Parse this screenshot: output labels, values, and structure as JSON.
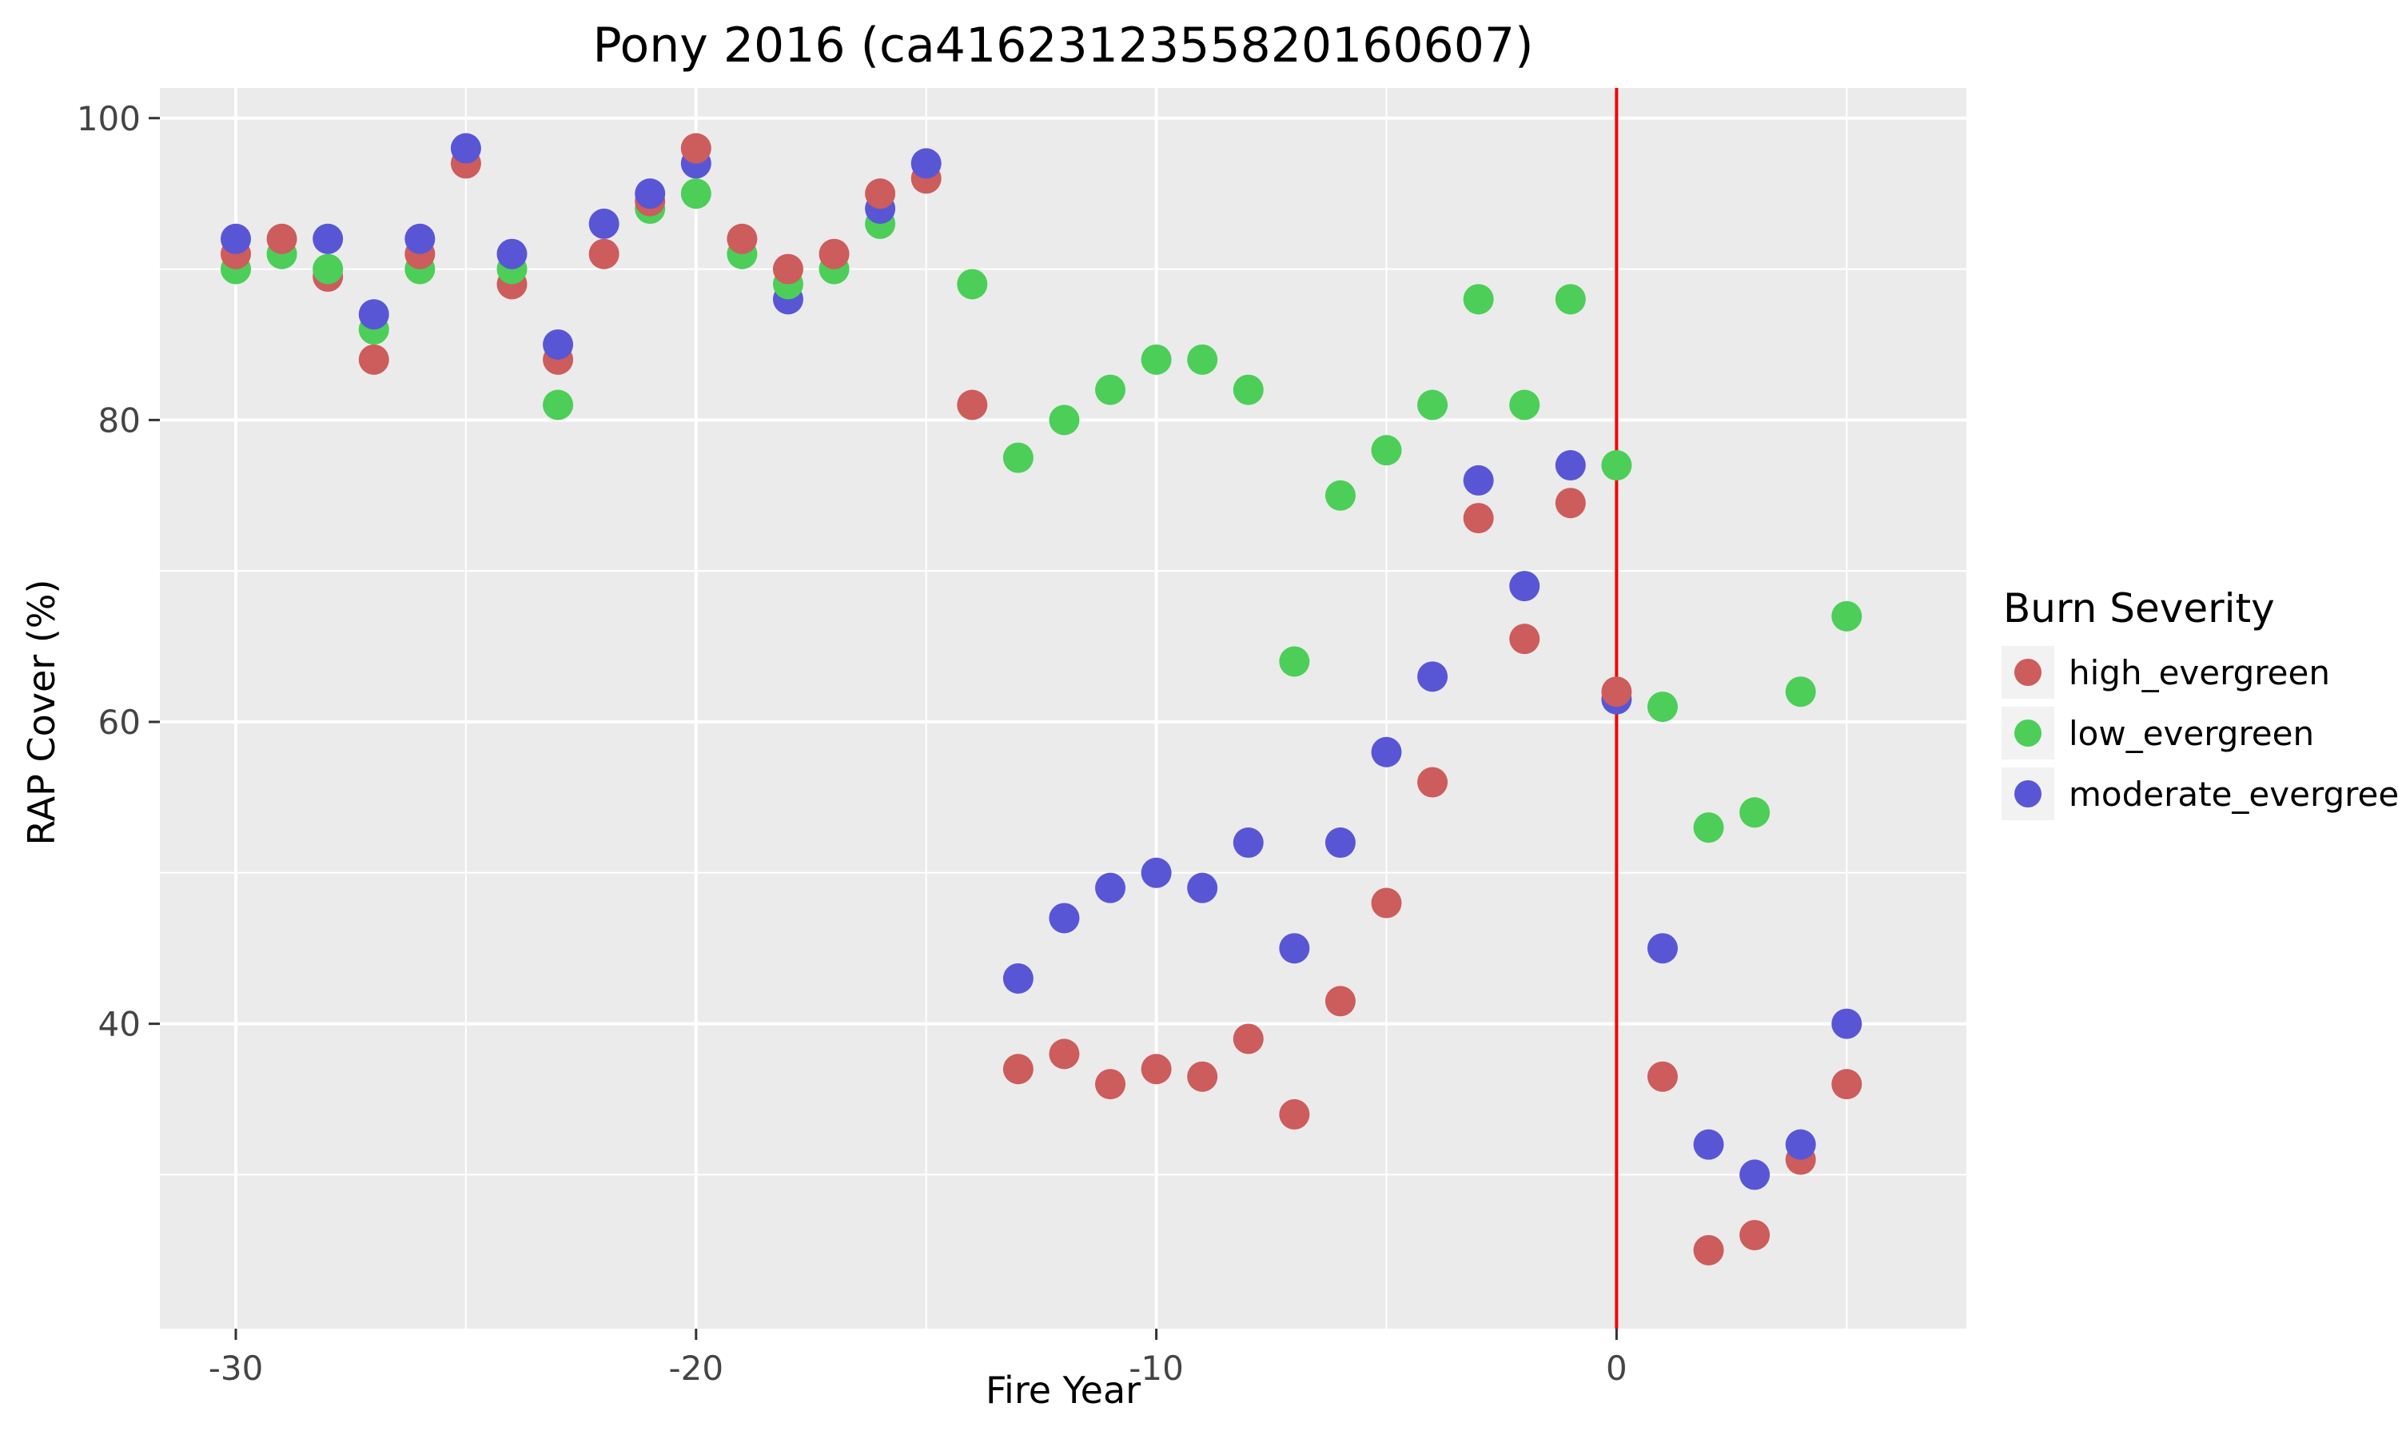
{
  "title": "Pony 2016 (ca4162312355820160607)",
  "chart_data": {
    "type": "scatter",
    "title": "Pony 2016 (ca4162312355820160607)",
    "xlabel": "Fire Year",
    "ylabel": "RAP Cover (%)",
    "xlim": [
      -31.65,
      7.6
    ],
    "ylim": [
      19.8,
      102.0
    ],
    "x_ticks": [
      -30,
      -20,
      -10,
      0
    ],
    "x_minor_ticks": [
      -25,
      -15,
      -5,
      5
    ],
    "y_ticks": [
      40,
      60,
      80,
      100
    ],
    "y_minor_ticks": [
      30,
      50,
      70,
      90
    ],
    "grid": "on",
    "panel_bg": "#EBEBEB",
    "grid_color": "#FFFFFF",
    "tick_color": "#333333",
    "tick_label_color": "#444444",
    "point_radius": 19,
    "vline": {
      "x": 0,
      "color": "#F50000"
    },
    "legend": {
      "title": "Burn Severity",
      "position": "right",
      "key_bg": "#F2F2F2"
    },
    "series": [
      {
        "name": "high_evergreen",
        "color": "#CD5C5C",
        "points": [
          [
            -30,
            91
          ],
          [
            -29,
            92
          ],
          [
            -28,
            89.5
          ],
          [
            -27,
            84
          ],
          [
            -26,
            91
          ],
          [
            -25,
            97
          ],
          [
            -24,
            89
          ],
          [
            -23,
            84
          ],
          [
            -22,
            91
          ],
          [
            -21,
            94.5
          ],
          [
            -20,
            98
          ],
          [
            -19,
            92
          ],
          [
            -18,
            90
          ],
          [
            -17,
            91
          ],
          [
            -16,
            95
          ],
          [
            -15,
            96
          ],
          [
            -14,
            81
          ],
          [
            -13,
            37
          ],
          [
            -12,
            38
          ],
          [
            -11,
            36
          ],
          [
            -10,
            37
          ],
          [
            -9,
            36.5
          ],
          [
            -8,
            39
          ],
          [
            -7,
            34
          ],
          [
            -6,
            41.5
          ],
          [
            -5,
            48
          ],
          [
            -4,
            56
          ],
          [
            -3,
            73.5
          ],
          [
            -2,
            65.5
          ],
          [
            -1,
            74.5
          ],
          [
            0,
            62
          ],
          [
            1,
            36.5
          ],
          [
            2,
            25
          ],
          [
            3,
            26
          ],
          [
            4,
            31
          ],
          [
            5,
            36
          ]
        ]
      },
      {
        "name": "low_evergreen",
        "color": "#4CCE58",
        "points": [
          [
            -30,
            90
          ],
          [
            -29,
            91
          ],
          [
            -28,
            90
          ],
          [
            -27,
            86
          ],
          [
            -26,
            90
          ],
          [
            -24,
            90
          ],
          [
            -23,
            81
          ],
          [
            -21,
            94
          ],
          [
            -20,
            95
          ],
          [
            -19,
            91
          ],
          [
            -18,
            89
          ],
          [
            -17,
            90
          ],
          [
            -16,
            93
          ],
          [
            -14,
            89
          ],
          [
            -13,
            77.5
          ],
          [
            -12,
            80
          ],
          [
            -11,
            82
          ],
          [
            -10,
            84
          ],
          [
            -9,
            84
          ],
          [
            -8,
            82
          ],
          [
            -7,
            64
          ],
          [
            -6,
            75
          ],
          [
            -5,
            78
          ],
          [
            -4,
            81
          ],
          [
            -3,
            88
          ],
          [
            -2,
            81
          ],
          [
            -1,
            88
          ],
          [
            0,
            77
          ],
          [
            1,
            61
          ],
          [
            2,
            53
          ],
          [
            3,
            54
          ],
          [
            4,
            62
          ],
          [
            5,
            67
          ]
        ]
      },
      {
        "name": "moderate_evergreen",
        "color": "#5956D5",
        "points": [
          [
            -30,
            92
          ],
          [
            -28,
            92
          ],
          [
            -27,
            87
          ],
          [
            -26,
            92
          ],
          [
            -25,
            98
          ],
          [
            -24,
            91
          ],
          [
            -23,
            85
          ],
          [
            -22,
            93
          ],
          [
            -21,
            95
          ],
          [
            -20,
            97
          ],
          [
            -18,
            88
          ],
          [
            -16,
            94
          ],
          [
            -15,
            97
          ],
          [
            -13,
            43
          ],
          [
            -12,
            47
          ],
          [
            -11,
            49
          ],
          [
            -10,
            50
          ],
          [
            -9,
            49
          ],
          [
            -8,
            52
          ],
          [
            -7,
            45
          ],
          [
            -6,
            52
          ],
          [
            -5,
            58
          ],
          [
            -4,
            63
          ],
          [
            -3,
            76
          ],
          [
            -2,
            69
          ],
          [
            -1,
            77
          ],
          [
            0,
            61.5
          ],
          [
            1,
            45
          ],
          [
            2,
            32
          ],
          [
            3,
            30
          ],
          [
            4,
            32
          ],
          [
            5,
            40
          ]
        ]
      }
    ]
  }
}
